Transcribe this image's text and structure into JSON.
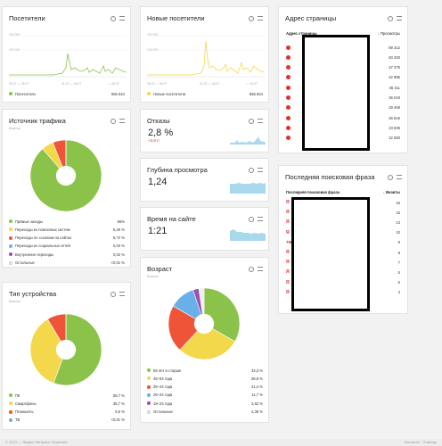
{
  "cards": {
    "visitors": {
      "title": "Посетители",
      "y_top": "200 000",
      "y_mid": "100 000",
      "date_start": "25.07 — 26.07",
      "date_mid": "31.07 — 06.07",
      "date_end": "— 26.07",
      "legend_label": "Посетители",
      "legend_value": "555 824",
      "color": "#8bc34a"
    },
    "new_visitors": {
      "title": "Новые посетители",
      "y_top": "200 000",
      "y_mid": "100 000",
      "date_start": "25.07 — 26.07",
      "date_mid": "31.07 — 06.07",
      "date_end": "— 26.07",
      "legend_label": "Новые посетители",
      "legend_value": "555 824",
      "color": "#f3d84b"
    },
    "page_address": {
      "title": "Адрес страницы",
      "col_label": "Адрес страницы",
      "col_value": "↓ Просмотры",
      "rows": [
        "69 312",
        "60 200",
        "47 376",
        "42 886",
        "36 411",
        "36 019",
        "29 409",
        "26 816",
        "23 835",
        "22 050"
      ]
    },
    "traffic_source": {
      "title": "Источник трафика",
      "subtitle": "Визиты",
      "items": [
        {
          "label": "Прямые заходы",
          "value": "86%",
          "color": "#8bc34a"
        },
        {
          "label": "Переходы из поисковых систем",
          "value": "5,29 %",
          "color": "#f3d84b"
        },
        {
          "label": "Переходы по ссылкам на сайтах",
          "value": "5,72 %",
          "color": "#ef5338"
        },
        {
          "label": "Переходы из социальных сетей",
          "value": "0,03 %",
          "color": "#6ab0e8"
        },
        {
          "label": "Внутренние переходы",
          "value": "0,02 %",
          "color": "#9c4fb3"
        },
        {
          "label": "Остальные",
          "value": "<0,01 %",
          "color": "#eeeeee"
        }
      ]
    },
    "bounce": {
      "title": "Отказы",
      "value": "2,8 %",
      "delta": "+2,8 п"
    },
    "depth": {
      "title": "Глубина просмотра",
      "value": "1,24"
    },
    "time": {
      "title": "Время на сайте",
      "value": "1:21"
    },
    "last_search": {
      "title": "Последняя поисковая фраза",
      "col_label": "Последняя поисковая фраза",
      "col_value": "↓ Визиты",
      "rows": [
        "16",
        "15",
        "13",
        "10",
        "9",
        "8",
        "7",
        "5",
        "5",
        "4"
      ],
      "row_marks": [
        "Я",
        "Я",
        "Я",
        "Я",
        "тки",
        "Я",
        "Я",
        "Я",
        "Я",
        "Я"
      ]
    },
    "device": {
      "title": "Тип устройства",
      "subtitle": "Визиты",
      "items": [
        {
          "label": "ПК",
          "value": "55,7 %",
          "color": "#8bc34a"
        },
        {
          "label": "Смартфоны",
          "value": "35,7 %",
          "color": "#f3d84b"
        },
        {
          "label": "Планшеты",
          "value": "8,6 %",
          "color": "#ef5338"
        },
        {
          "label": "ТВ",
          "value": "<0,01 %",
          "color": "#6ab0e8"
        }
      ]
    },
    "age": {
      "title": "Возраст",
      "subtitle": "Визиты",
      "items": [
        {
          "label": "55 лет и старше",
          "value": "33,3 %",
          "color": "#8bc34a"
        },
        {
          "label": "45–54 года",
          "value": "28,6 %",
          "color": "#f3d84b"
        },
        {
          "label": "35–44 года",
          "value": "21,4 %",
          "color": "#ef5338"
        },
        {
          "label": "25–34 года",
          "value": "11,7 %",
          "color": "#6ab0e8"
        },
        {
          "label": "18–24 года",
          "value": "2,62 %",
          "color": "#9c4fb3"
        },
        {
          "label": "Остальные",
          "value": "2,38 %",
          "color": "#eeeeee"
        }
      ]
    }
  },
  "chart_data": [
    {
      "type": "pie",
      "title": "Источник трафика",
      "categories": [
        "Прямые заходы",
        "Переходы из поисковых систем",
        "Переходы по ссылкам на сайтах",
        "Переходы из социальных сетей",
        "Внутренние переходы",
        "Остальные"
      ],
      "values": [
        86,
        5.29,
        5.72,
        0.03,
        0.02,
        0.01
      ]
    },
    {
      "type": "pie",
      "title": "Тип устройства",
      "categories": [
        "ПК",
        "Смартфоны",
        "Планшеты",
        "ТВ"
      ],
      "values": [
        55.7,
        35.7,
        8.6,
        0.01
      ]
    },
    {
      "type": "pie",
      "title": "Возраст",
      "categories": [
        "55 лет и старше",
        "45–54 года",
        "35–44 года",
        "25–34 года",
        "18–24 года",
        "Остальные"
      ],
      "values": [
        33.3,
        28.6,
        21.4,
        11.7,
        2.62,
        2.38
      ]
    }
  ],
  "footer": {
    "left": "© 2013 — Яндекс Метрика, Лицензия",
    "right": "Контакты · Помощь"
  }
}
